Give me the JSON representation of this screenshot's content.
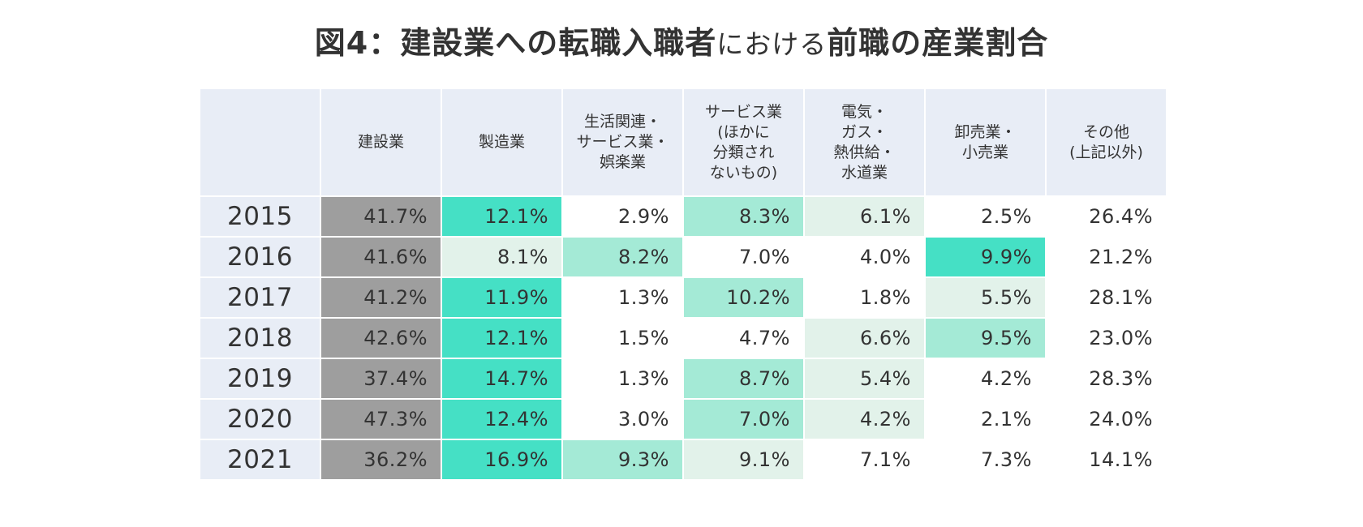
{
  "chart_data": {
    "type": "table",
    "title_main": "図4：建設業への転職入職者",
    "title_mid": "における",
    "title_end": "前職の産業割合",
    "corner": "",
    "columns": [
      "建設業",
      "製造業",
      "生活関連・\nサービス業・\n娯楽業",
      "サービス業\n(ほかに\n分類され\nないもの)",
      "電気・\nガス・\n熱供給・\n水道業",
      "卸売業・\n小売業",
      "その他\n(上記以外)"
    ],
    "rows": [
      {
        "year": "2015",
        "cells": [
          "41.7%",
          "12.1%",
          "2.9%",
          "8.3%",
          "6.1%",
          "2.5%",
          "26.4%"
        ],
        "shade": [
          "g",
          3,
          0,
          2,
          1,
          0,
          0
        ]
      },
      {
        "year": "2016",
        "cells": [
          "41.6%",
          "8.1%",
          "8.2%",
          "7.0%",
          "4.0%",
          "9.9%",
          "21.2%"
        ],
        "shade": [
          "g",
          1,
          2,
          0,
          0,
          3,
          0
        ]
      },
      {
        "year": "2017",
        "cells": [
          "41.2%",
          "11.9%",
          "1.3%",
          "10.2%",
          "1.8%",
          "5.5%",
          "28.1%"
        ],
        "shade": [
          "g",
          3,
          0,
          2,
          0,
          1,
          0
        ]
      },
      {
        "year": "2018",
        "cells": [
          "42.6%",
          "12.1%",
          "1.5%",
          "4.7%",
          "6.6%",
          "9.5%",
          "23.0%"
        ],
        "shade": [
          "g",
          3,
          0,
          0,
          1,
          2,
          0
        ]
      },
      {
        "year": "2019",
        "cells": [
          "37.4%",
          "14.7%",
          "1.3%",
          "8.7%",
          "5.4%",
          "4.2%",
          "28.3%"
        ],
        "shade": [
          "g",
          3,
          0,
          2,
          1,
          0,
          0
        ]
      },
      {
        "year": "2020",
        "cells": [
          "47.3%",
          "12.4%",
          "3.0%",
          "7.0%",
          "4.2%",
          "2.1%",
          "24.0%"
        ],
        "shade": [
          "g",
          3,
          0,
          2,
          1,
          0,
          0
        ]
      },
      {
        "year": "2021",
        "cells": [
          "36.2%",
          "16.9%",
          "9.3%",
          "9.1%",
          "7.1%",
          "7.3%",
          "14.1%"
        ],
        "shade": [
          "g",
          3,
          2,
          1,
          0,
          0,
          0
        ]
      }
    ],
    "colors": {
      "header_bg": "#e8edf6",
      "level_0": "#ffffff",
      "level_1": "#e2f2ea",
      "level_2": "#a4ead6",
      "level_3": "#45e0c5",
      "construction": "#9e9e9e"
    }
  }
}
